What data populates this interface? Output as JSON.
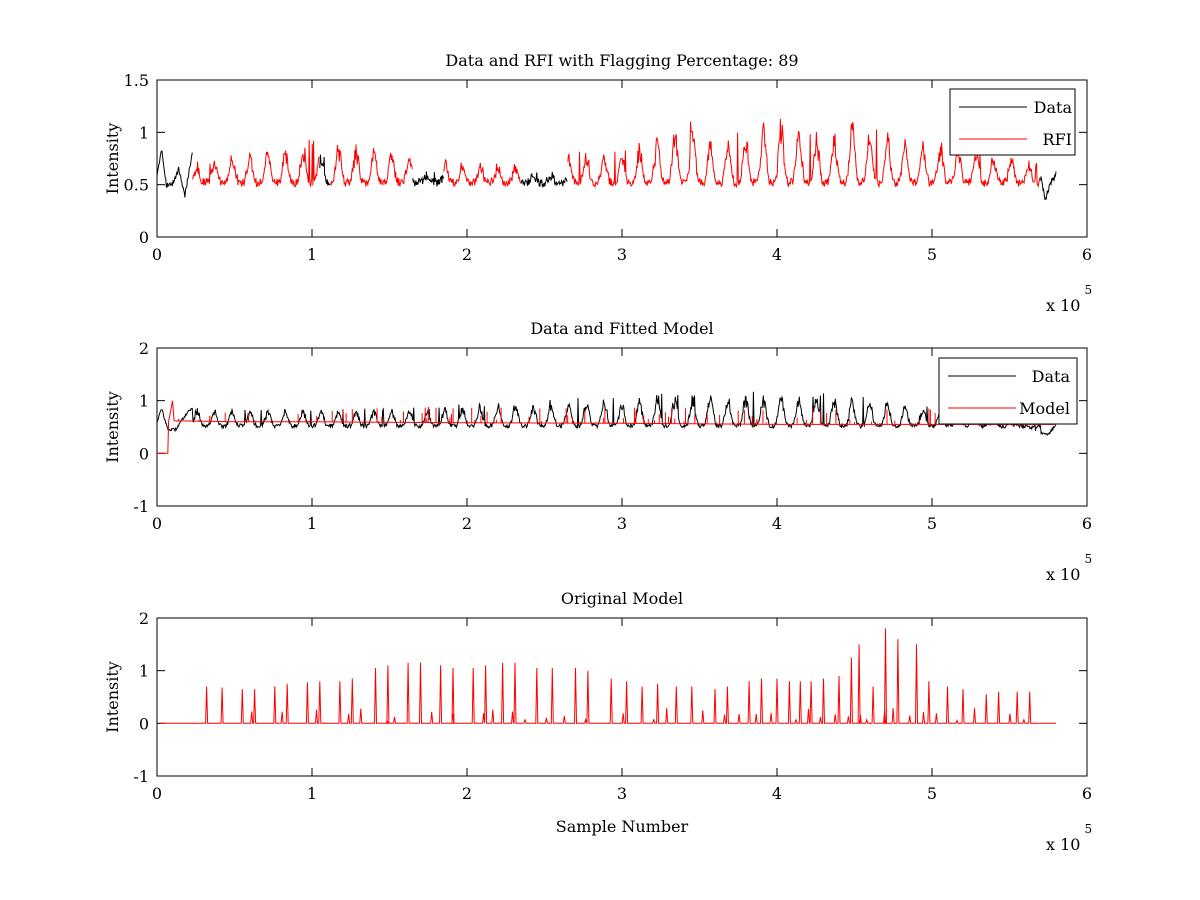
{
  "chart_data": [
    {
      "type": "line",
      "title": "Data and RFI with Flagging Percentage: 89",
      "xlabel": "",
      "ylabel": "Intensity",
      "xlim": [
        0,
        6
      ],
      "ylim": [
        0,
        1.5
      ],
      "xticks": [
        "0",
        "1",
        "2",
        "3",
        "4",
        "5",
        "6"
      ],
      "yticks": [
        "0",
        "0.5",
        "1",
        "1.5"
      ],
      "x_multiplier": {
        "text": "x 10",
        "exponent": "5"
      },
      "grid": false,
      "legend_position": "top-right",
      "series": [
        {
          "name": "Data",
          "color": "#000000",
          "x": [
            0,
            0.03,
            0.06,
            0.1,
            0.14,
            0.18,
            0.21,
            0.23,
            1.05,
            1.1,
            1.65,
            1.85,
            2.4,
            2.65,
            5.7,
            5.73,
            5.76,
            5.8
          ],
          "y": [
            0.6,
            0.85,
            0.5,
            0.5,
            0.65,
            0.4,
            0.65,
            0.8,
            0.75,
            0.8,
            0.6,
            0.6,
            0.6,
            0.6,
            0.6,
            0.35,
            0.5,
            0.6
          ]
        },
        {
          "name": "RFI",
          "color": "#ff0000",
          "x": [
            0.25,
            0.5,
            0.8,
            1.0,
            1.2,
            1.4,
            1.6,
            2.0,
            2.4,
            2.7,
            3.0,
            3.3,
            3.4,
            3.6,
            3.8,
            3.98,
            4.2,
            4.4,
            4.5,
            4.8,
            5.1,
            5.4,
            5.68
          ],
          "y": [
            0.7,
            0.8,
            0.85,
            0.9,
            0.9,
            0.85,
            0.8,
            0.7,
            0.7,
            0.8,
            0.8,
            1.0,
            1.15,
            0.9,
            1.0,
            1.18,
            1.0,
            1.0,
            1.15,
            0.95,
            0.9,
            0.8,
            0.7
          ]
        }
      ]
    },
    {
      "type": "line",
      "title": "Data and Fitted Model",
      "xlabel": "",
      "ylabel": "Intensity",
      "xlim": [
        0,
        6
      ],
      "ylim": [
        -1,
        2
      ],
      "xticks": [
        "0",
        "1",
        "2",
        "3",
        "4",
        "5",
        "6"
      ],
      "yticks": [
        "-1",
        "0",
        "1",
        "2"
      ],
      "x_multiplier": {
        "text": "x 10",
        "exponent": "5"
      },
      "grid": false,
      "legend_position": "top-right",
      "series": [
        {
          "name": "Data",
          "color": "#000000",
          "x": [
            0,
            0.03,
            0.07,
            0.12,
            0.2,
            0.23,
            1.2,
            1.4,
            3.3,
            3.4,
            3.98,
            4.5,
            5.5,
            5.75,
            5.8
          ],
          "y": [
            0.6,
            0.85,
            0.45,
            0.45,
            0.8,
            0.85,
            0.85,
            0.8,
            1.1,
            1.1,
            1.15,
            1.1,
            0.6,
            0.35,
            0.55
          ]
        },
        {
          "name": "Model",
          "color": "#ff0000",
          "x": [
            0,
            0.07,
            0.075,
            0.1,
            0.11,
            0.5,
            1.0,
            2.0,
            3.0,
            4.0,
            5.0,
            5.8
          ],
          "y": [
            0,
            0,
            0.6,
            1.0,
            0.62,
            0.6,
            0.6,
            0.58,
            0.57,
            0.55,
            0.55,
            0.55
          ]
        }
      ]
    },
    {
      "type": "line",
      "title": "Original Model",
      "xlabel": "Sample Number",
      "ylabel": "Intensity",
      "xlim": [
        0,
        6
      ],
      "ylim": [
        -1,
        2
      ],
      "xticks": [
        "0",
        "1",
        "2",
        "3",
        "4",
        "5",
        "6"
      ],
      "yticks": [
        "-1",
        "0",
        "1",
        "2"
      ],
      "x_multiplier": {
        "text": "x 10",
        "exponent": "5"
      },
      "grid": false,
      "series": [
        {
          "color": "#ff0000",
          "x": [
            0.32,
            0.42,
            0.55,
            0.63,
            0.76,
            0.84,
            0.97,
            1.05,
            1.18,
            1.26,
            1.41,
            1.49,
            1.62,
            1.7,
            1.83,
            1.91,
            2.04,
            2.12,
            2.23,
            2.31,
            2.45,
            2.55,
            2.7,
            2.78,
            2.93,
            3.03,
            3.13,
            3.23,
            3.35,
            3.45,
            3.6,
            3.68,
            3.82,
            3.9,
            4.0,
            4.08,
            4.15,
            4.22,
            4.3,
            4.4,
            4.48,
            4.53,
            4.62,
            4.7,
            4.78,
            4.9,
            4.98,
            5.1,
            5.2,
            5.35,
            5.43,
            5.55,
            5.63
          ],
          "y": [
            0.7,
            0.68,
            0.65,
            0.65,
            0.7,
            0.75,
            0.78,
            0.8,
            0.8,
            0.85,
            1.05,
            1.1,
            1.15,
            1.15,
            1.1,
            1.05,
            1.05,
            1.1,
            1.15,
            1.15,
            1.05,
            1.05,
            1.05,
            1.0,
            0.85,
            0.8,
            0.7,
            0.75,
            0.7,
            0.7,
            0.65,
            0.7,
            0.8,
            0.85,
            0.85,
            0.8,
            0.8,
            0.8,
            0.85,
            0.9,
            1.25,
            1.5,
            0.7,
            1.8,
            1.6,
            1.5,
            0.8,
            0.7,
            0.65,
            0.55,
            0.6,
            0.6,
            0.6
          ]
        }
      ]
    }
  ]
}
